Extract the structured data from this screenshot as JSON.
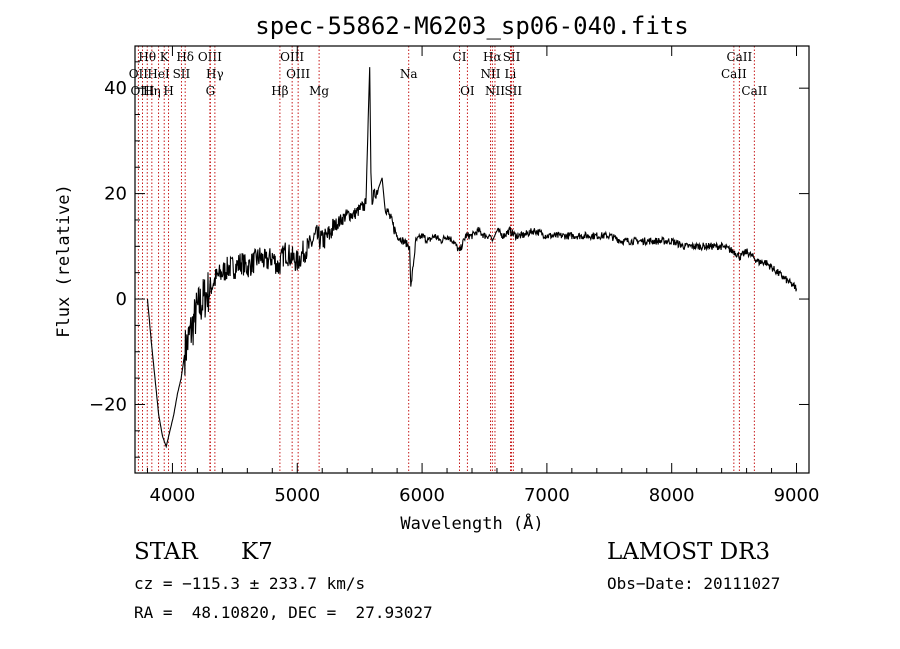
{
  "chart_data": {
    "type": "line",
    "title": "spec-55862-M6203_sp06-040.fits",
    "xlabel": "Wavelength (Å)",
    "ylabel": "Flux (relative)",
    "xlim": [
      3700,
      9100
    ],
    "ylim": [
      -33,
      48
    ],
    "x_ticks": [
      4000,
      5000,
      6000,
      7000,
      8000,
      9000
    ],
    "y_ticks": [
      -20,
      0,
      20,
      40
    ],
    "series": [
      {
        "name": "flux",
        "x": [
          3800,
          3830,
          3860,
          3890,
          3920,
          3950,
          3980,
          4010,
          4040,
          4070,
          4100,
          4150,
          4200,
          4250,
          4300,
          4350,
          4400,
          4450,
          4500,
          4550,
          4600,
          4650,
          4700,
          4750,
          4800,
          4850,
          4900,
          4950,
          5000,
          5050,
          5100,
          5150,
          5200,
          5250,
          5300,
          5350,
          5400,
          5450,
          5500,
          5550,
          5580,
          5590,
          5600,
          5650,
          5680,
          5700,
          5750,
          5800,
          5850,
          5900,
          5910,
          5950,
          6000,
          6050,
          6100,
          6150,
          6200,
          6250,
          6300,
          6350,
          6400,
          6450,
          6500,
          6550,
          6563,
          6600,
          6650,
          6700,
          6750,
          6800,
          6900,
          7000,
          7100,
          7200,
          7300,
          7400,
          7500,
          7600,
          7700,
          7800,
          7900,
          8000,
          8100,
          8200,
          8300,
          8400,
          8500,
          8550,
          8600,
          8650,
          8700,
          8750,
          8800,
          8850,
          8900,
          8950,
          9000
        ],
        "y": [
          0,
          -8,
          -15,
          -22,
          -26,
          -28,
          -25,
          -22,
          -18,
          -15,
          -10,
          -6,
          -2,
          0,
          2,
          4,
          5,
          6,
          6,
          7,
          6,
          7,
          8,
          7,
          8,
          6,
          9,
          8,
          7,
          9,
          10,
          12,
          11,
          12,
          14,
          15,
          16,
          16,
          17,
          18,
          44,
          24,
          19,
          21,
          23,
          18,
          15,
          12,
          11,
          10,
          2,
          11,
          12,
          11,
          12,
          11,
          12,
          11,
          9,
          12,
          12,
          13,
          12,
          12,
          11,
          13,
          12,
          13,
          12,
          12,
          13,
          12,
          12,
          12,
          12,
          12,
          12,
          11,
          11,
          11,
          11,
          11,
          10,
          10,
          10,
          10,
          9,
          8,
          9,
          8,
          7,
          7,
          6,
          5,
          4,
          3,
          2
        ]
      }
    ],
    "lines": [
      {
        "name": "Hθ",
        "wave": 3798,
        "row": 1
      },
      {
        "name": "OII",
        "wave": 3727,
        "row": 2
      },
      {
        "name": "OIII",
        "wave": 3760,
        "row": 3
      },
      {
        "name": "Hη",
        "wave": 3835,
        "row": 3
      },
      {
        "name": "HeI",
        "wave": 3889,
        "row": 2
      },
      {
        "name": "K",
        "wave": 3934,
        "row": 1
      },
      {
        "name": "H",
        "wave": 3969,
        "row": 3
      },
      {
        "name": "SII",
        "wave": 4072,
        "row": 2
      },
      {
        "name": "Hδ",
        "wave": 4102,
        "row": 1
      },
      {
        "name": "OIII",
        "wave": 4300,
        "row": 1
      },
      {
        "name": "Hγ",
        "wave": 4340,
        "row": 2
      },
      {
        "name": "G",
        "wave": 4304,
        "row": 3
      },
      {
        "name": "Hβ",
        "wave": 4861,
        "row": 3
      },
      {
        "name": "OIII",
        "wave": 4959,
        "row": 1
      },
      {
        "name": "OIII",
        "wave": 5007,
        "row": 2
      },
      {
        "name": "Mg",
        "wave": 5175,
        "row": 3
      },
      {
        "name": "Na",
        "wave": 5893,
        "row": 2
      },
      {
        "name": "CI",
        "wave": 6300,
        "row": 1
      },
      {
        "name": "OI",
        "wave": 6363,
        "row": 3
      },
      {
        "name": "Hα",
        "wave": 6563,
        "row": 1
      },
      {
        "name": "NII",
        "wave": 6548,
        "row": 2
      },
      {
        "name": "NII",
        "wave": 6584,
        "row": 3
      },
      {
        "name": "SII",
        "wave": 6717,
        "row": 1
      },
      {
        "name": "Li",
        "wave": 6708,
        "row": 2
      },
      {
        "name": "SII",
        "wave": 6731,
        "row": 3
      },
      {
        "name": "CaII",
        "wave": 8542,
        "row": 1
      },
      {
        "name": "CaII",
        "wave": 8498,
        "row": 2
      },
      {
        "name": "CaII",
        "wave": 8662,
        "row": 3
      }
    ]
  },
  "info": {
    "object_type": "STAR",
    "subclass": "K7",
    "survey": "LAMOST DR3",
    "cz": "cz = −115.3 ± 233.7 km/s",
    "obs_date": "Obs−Date: 20111027",
    "radec": "RA =  48.10820, DEC =  27.93027"
  }
}
